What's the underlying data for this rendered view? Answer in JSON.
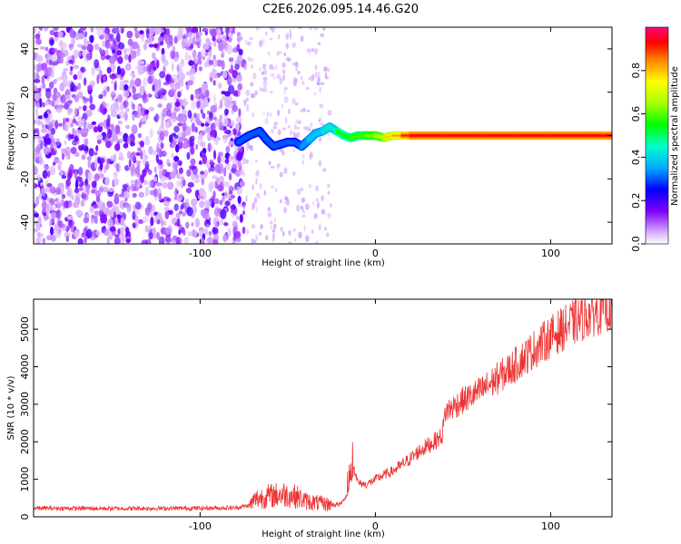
{
  "title": "C2E6.2026.095.14.46.G20",
  "chart_data": [
    {
      "type": "heatmap",
      "xlabel": "Height of straight line (km)",
      "ylabel": "Frequency (Hz)",
      "xlim": [
        -195,
        135
      ],
      "ylim": [
        -50,
        50
      ],
      "xticks": [
        -100,
        0,
        100
      ],
      "xtick_labels": [
        "-100",
        "0",
        "100"
      ],
      "yticks": [
        -40,
        -20,
        0,
        20,
        40
      ],
      "ytick_labels": [
        "-40",
        "-20",
        "0",
        "20",
        "40"
      ],
      "colorbar": {
        "label": "Normalized spectral amplitude",
        "range": [
          0,
          1
        ],
        "ticks": [
          0,
          0.2,
          0.4,
          0.6,
          0.8
        ],
        "tick_labels": [
          "0.0",
          "0.2",
          "0.4",
          "0.6",
          "0.8"
        ]
      },
      "signal_track": {
        "x": [
          -78,
          -72,
          -66,
          -62,
          -58,
          -54,
          -50,
          -46,
          -42,
          -38,
          -34,
          -30,
          -26,
          -22,
          -18,
          -14,
          -10,
          -5,
          0,
          5,
          10,
          15,
          20,
          40,
          60,
          80,
          100,
          120,
          135
        ],
        "frequency": [
          -3,
          0,
          2,
          -2,
          -5,
          -4,
          -3,
          -3,
          -5,
          -2,
          1,
          2,
          4,
          2,
          0,
          -1,
          0,
          0,
          0,
          -1,
          0,
          0,
          0,
          0,
          0,
          0,
          0,
          0,
          0
        ],
        "amplitude": [
          0.3,
          0.3,
          0.35,
          0.3,
          0.3,
          0.3,
          0.35,
          0.3,
          0.35,
          0.4,
          0.4,
          0.45,
          0.45,
          0.55,
          0.55,
          0.6,
          0.6,
          0.65,
          0.7,
          0.8,
          0.85,
          0.95,
          1.0,
          1.0,
          1.0,
          1.0,
          1.0,
          1.0,
          1.0
        ]
      },
      "noise_region_x": [
        -195,
        -75
      ]
    },
    {
      "type": "line",
      "xlabel": "Height of straight line (km)",
      "ylabel": "SNR (10 * v/v)",
      "xlim": [
        -195,
        135
      ],
      "ylim": [
        0,
        5800
      ],
      "xticks": [
        -100,
        0,
        100
      ],
      "xtick_labels": [
        "-100",
        "0",
        "100"
      ],
      "yticks": [
        0,
        1000,
        2000,
        3000,
        4000,
        5000
      ],
      "ytick_labels": [
        "0",
        "1000",
        "2000",
        "3000",
        "4000",
        "5000"
      ],
      "series": [
        {
          "name": "SNR",
          "color": "#ee3333",
          "x": [
            -195,
            -150,
            -100,
            -80,
            -72,
            -68,
            -60,
            -52,
            -45,
            -40,
            -32,
            -25,
            -20,
            -16,
            -14,
            -12,
            -10,
            -5,
            0,
            5,
            10,
            15,
            20,
            25,
            30,
            35,
            38,
            40,
            50,
            60,
            70,
            80,
            90,
            100,
            110,
            120,
            130,
            135
          ],
          "y": [
            230,
            220,
            230,
            240,
            300,
            480,
            560,
            600,
            540,
            420,
            360,
            320,
            330,
            600,
            1000,
            1300,
            900,
            860,
            1000,
            1120,
            1220,
            1380,
            1550,
            1750,
            1900,
            2050,
            2150,
            2800,
            3100,
            3350,
            3700,
            4050,
            4450,
            4800,
            5100,
            5350,
            5550,
            5600
          ]
        }
      ]
    }
  ]
}
